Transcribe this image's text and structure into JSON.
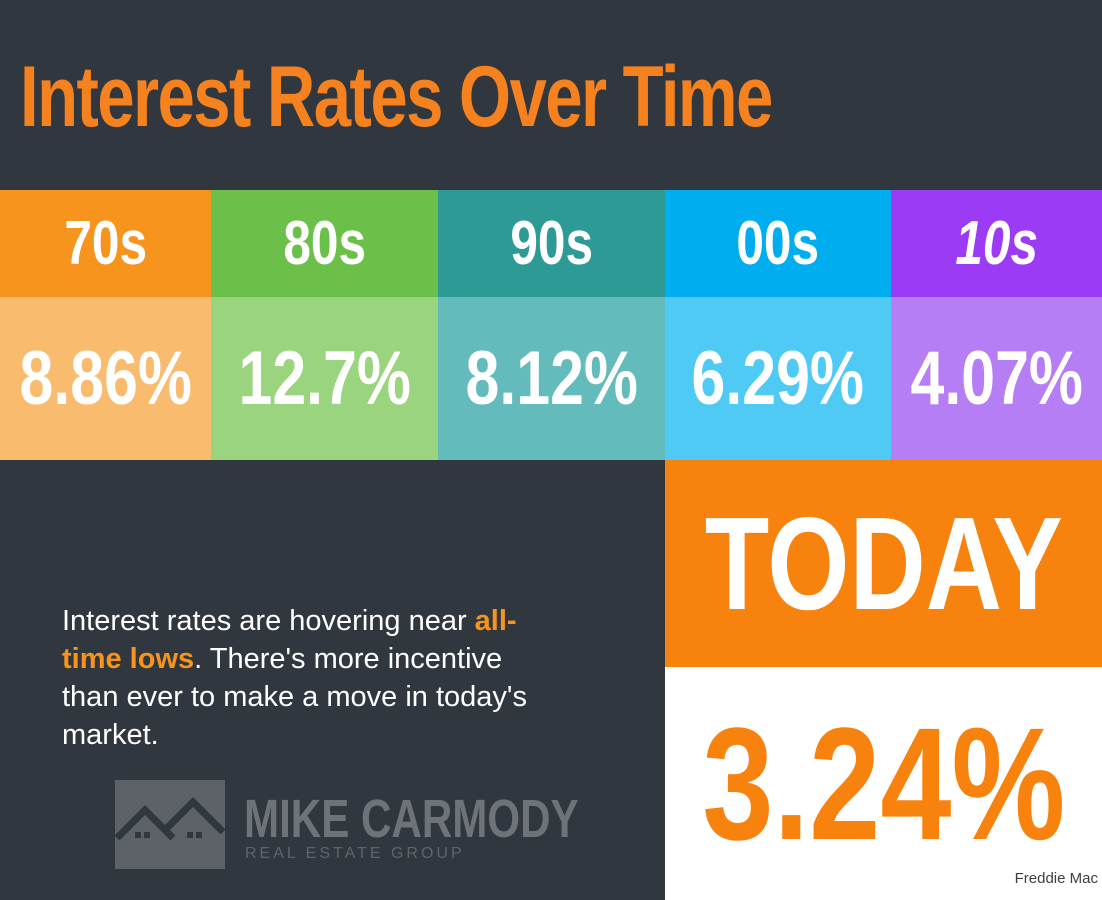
{
  "title": "Interest Rates Over Time",
  "decades": [
    {
      "label": "70s",
      "rate": "8.86%"
    },
    {
      "label": "80s",
      "rate": "12.7%"
    },
    {
      "label": "90s",
      "rate": "8.12%"
    },
    {
      "label": "00s",
      "rate": "6.29%"
    },
    {
      "label": "10s",
      "rate": "4.07%"
    }
  ],
  "today": {
    "label": "TODAY",
    "rate": "3.24%"
  },
  "message": {
    "before": "Interest rates are hovering near ",
    "highlight": "all-time lows",
    "after": ". There's more incentive than ever to make a move in today's market."
  },
  "logo": {
    "name": "MIKE CARMODY",
    "tagline": "REAL ESTATE GROUP"
  },
  "source": "Freddie Mac"
}
